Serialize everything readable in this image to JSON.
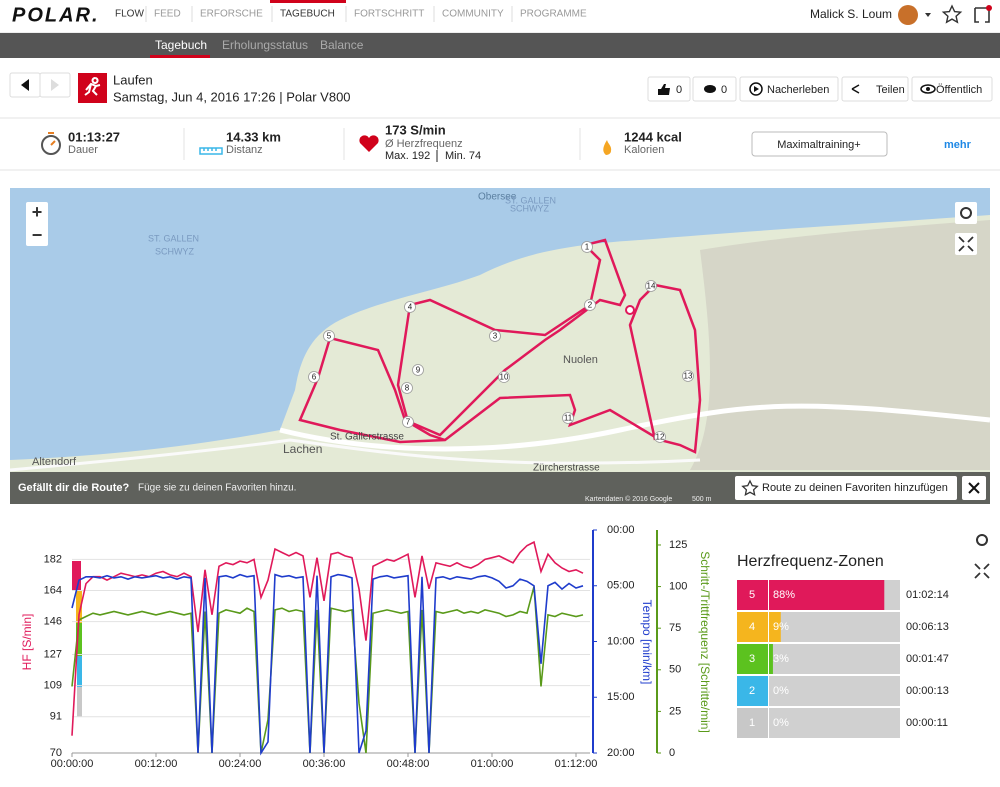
{
  "nav": {
    "logo": "POLAR.",
    "items": [
      "FLOW",
      "FEED",
      "ERFORSCHE",
      "TAGEBUCH",
      "FORTSCHRITT",
      "COMMUNITY",
      "PROGRAMME"
    ],
    "user": "Malick S. Loum"
  },
  "subnav": [
    "Tagebuch",
    "Erholungsstatus",
    "Balance"
  ],
  "activity": {
    "sport": "Laufen",
    "date": "Samstag, Jun 4, 2016 17:26 | Polar V800",
    "likes": 0,
    "comments": 0,
    "actions": [
      "Nacherleben",
      "Teilen",
      "Öffentlich"
    ]
  },
  "summary": {
    "duration": "01:13:27",
    "duration_label": "Dauer",
    "distance": "14.33 km",
    "distance_label": "Distanz",
    "heart_rate": "173 S/min",
    "heart_rate_label": "Ø Herzfrequenz",
    "heart_rate_max": "Max. 192",
    "heart_rate_min": "Min. 74",
    "calories": "1244 kcal",
    "calories_label": "Kalorien",
    "button": "Maximaltraining+",
    "more": "mehr"
  },
  "map": {
    "places": [
      "Obersee",
      "ST. GALLEN",
      "SCHWYZ",
      "ST. GALLEN",
      "SCHWYZ",
      "Nuolen",
      "Lachen",
      "St. Gallerstrasse",
      "Zürcherstrasse",
      "Altendorf"
    ],
    "km_markers": [
      "1",
      "2",
      "3",
      "4",
      "5",
      "6",
      "7",
      "8",
      "9",
      "10",
      "11",
      "12",
      "13",
      "14"
    ],
    "zoom_in": "+",
    "zoom_out": "−",
    "prompt": "Gefällt dir die Route?",
    "prompt_hint": "Füge sie zu deinen Favoriten hinzu.",
    "favorite_button": "Route zu deinen Favoriten hinzufügen",
    "attribution": "Kartendaten © 2016 Google",
    "scale": "500 m"
  },
  "zones": {
    "title": "Herzfrequenz-Zonen",
    "rows": [
      {
        "zone": "5",
        "percent": 88,
        "label": "88%",
        "time": "01:02:14",
        "color": "#e0195a"
      },
      {
        "zone": "4",
        "percent": 9,
        "label": "9%",
        "time": "00:06:13",
        "color": "#f5b51e"
      },
      {
        "zone": "3",
        "percent": 3,
        "label": "3%",
        "time": "00:01:47",
        "color": "#5cc21f"
      },
      {
        "zone": "2",
        "percent": 0,
        "label": "0%",
        "time": "00:00:13",
        "color": "#3ab7e8"
      },
      {
        "zone": "1",
        "percent": 0,
        "label": "0%",
        "time": "00:00:11",
        "color": "#c8c8c8"
      }
    ]
  },
  "chart_data": {
    "type": "line",
    "ylabel": "HF [S/min]",
    "y2label": "Tempo [min/km]",
    "y3label": "Schritt-/Trittfrequenz [Schritte/min]",
    "xlim": [
      0,
      74
    ],
    "xticks": [
      {
        "value": 0,
        "label": "00:00:00"
      },
      {
        "value": 12,
        "label": "00:12:00"
      },
      {
        "value": 24,
        "label": "00:24:00"
      },
      {
        "value": 36,
        "label": "00:36:00"
      },
      {
        "value": 48,
        "label": "00:48:00"
      },
      {
        "value": 60,
        "label": "01:00:00"
      },
      {
        "value": 72,
        "label": "01:12:00"
      }
    ],
    "ylim": [
      70,
      199
    ],
    "yticks": [
      70,
      91,
      109,
      127,
      146,
      164,
      182
    ],
    "grid": true,
    "y2lim": [
      0,
      20
    ],
    "y2_inverted": true,
    "y2ticks": [
      {
        "value": 0,
        "label": "00:00"
      },
      {
        "value": 5,
        "label": "05:00"
      },
      {
        "value": 10,
        "label": "10:00"
      },
      {
        "value": 15,
        "label": "15:00"
      },
      {
        "value": 20,
        "label": "20:00"
      }
    ],
    "y3lim": [
      0,
      134
    ],
    "y3ticks": [
      0,
      25,
      50,
      75,
      100,
      125
    ],
    "x": [
      0,
      1,
      2,
      3,
      4,
      5,
      6,
      7,
      8,
      9,
      10,
      11,
      12,
      13,
      14,
      15,
      16,
      17,
      18,
      19,
      20,
      21,
      22,
      23,
      24,
      25,
      26,
      27,
      28,
      29,
      30,
      31,
      32,
      33,
      34,
      35,
      36,
      37,
      38,
      39,
      40,
      41,
      42,
      43,
      44,
      45,
      46,
      47,
      48,
      49,
      50,
      51,
      52,
      53,
      54,
      55,
      56,
      57,
      58,
      59,
      60,
      61,
      62,
      63,
      64,
      65,
      66,
      67,
      68,
      69,
      70,
      71,
      72,
      73
    ],
    "series": [
      {
        "name": "HF",
        "color": "#e0195a",
        "axis": "y",
        "values": [
          80,
          150,
          168,
          172,
          172,
          170,
          172,
          174,
          173,
          172,
          173,
          172,
          174,
          175,
          173,
          172,
          174,
          172,
          140,
          176,
          150,
          178,
          180,
          179,
          181,
          180,
          182,
          160,
          170,
          188,
          186,
          184,
          186,
          184,
          160,
          183,
          158,
          185,
          186,
          184,
          183,
          165,
          135,
          178,
          180,
          182,
          181,
          183,
          185,
          160,
          184,
          165,
          180,
          179,
          178,
          180,
          178,
          177,
          179,
          182,
          183,
          184,
          182,
          180,
          186,
          190,
          192,
          175,
          185,
          180,
          177,
          175,
          176,
          174
        ]
      },
      {
        "name": "Tempo",
        "color": "#1f3ccc",
        "axis": "y2",
        "values": [
          7,
          4.5,
          4.2,
          4.2,
          4.3,
          4.1,
          4.3,
          4.2,
          4.4,
          4.2,
          4.3,
          4.2,
          4.1,
          4.3,
          4.2,
          4.4,
          4.2,
          4.3,
          20,
          4.3,
          20,
          4.2,
          4.1,
          4.3,
          4.0,
          4.2,
          4.1,
          20,
          19,
          4.0,
          4.2,
          4.1,
          4.3,
          4.2,
          20,
          4.1,
          20,
          4.2,
          4.0,
          4.1,
          4.3,
          20,
          18,
          4.4,
          4.2,
          4.1,
          4.3,
          4.2,
          4.1,
          20,
          4.2,
          20,
          4.3,
          4.2,
          4.4,
          4.2,
          4.3,
          4.4,
          4.2,
          4.1,
          4.3,
          4.6,
          5.2,
          5.0,
          4.4,
          4.6,
          5.0,
          12,
          5.0,
          4.7,
          5.3,
          4.8,
          5.2,
          5.0
        ]
      },
      {
        "name": "Schrittfrequenz",
        "color": "#5a9a1a",
        "axis": "y3",
        "values": [
          40,
          80,
          82,
          84,
          83,
          84,
          85,
          84,
          83,
          84,
          85,
          84,
          83,
          84,
          85,
          84,
          83,
          84,
          0,
          85,
          0,
          84,
          86,
          85,
          84,
          87,
          85,
          0,
          20,
          86,
          87,
          85,
          86,
          85,
          0,
          86,
          0,
          87,
          86,
          85,
          86,
          30,
          0,
          84,
          85,
          86,
          85,
          84,
          85,
          0,
          86,
          0,
          85,
          84,
          85,
          86,
          84,
          85,
          84,
          86,
          85,
          84,
          82,
          83,
          85,
          84,
          100,
          40,
          83,
          82,
          84,
          83,
          82,
          83
        ]
      }
    ]
  }
}
